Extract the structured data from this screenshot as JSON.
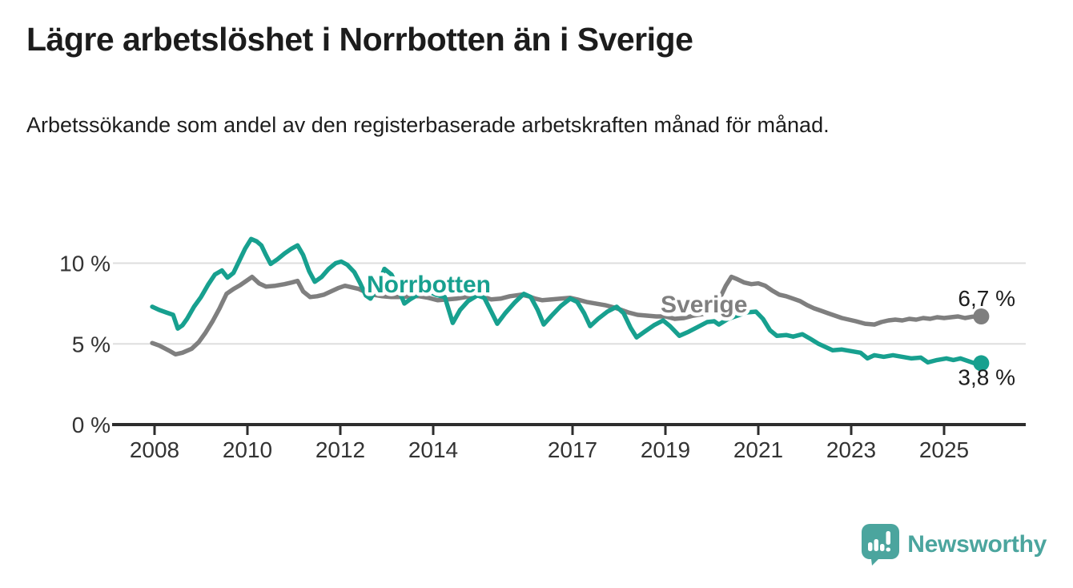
{
  "title": "Lägre arbetslöshet i Norrbotten än i Sverige",
  "subtitle": "Arbetssökande som andel av den registerbaserade arbetskraften månad för månad.",
  "branding": {
    "logo_text": "Newsworthy"
  },
  "colors": {
    "norrbotten": "#17a08f",
    "sverige": "#7f7f7f",
    "grid": "#dedede",
    "axis": "#2d2d2d",
    "tick_text": "#333333",
    "value_text": "#1d1d1d",
    "logo": "#4ba59e",
    "background": "#ffffff"
  },
  "chart_data": {
    "type": "line",
    "title": "Lägre arbetslöshet i Norrbotten än i Sverige",
    "subtitle": "Arbetssökande som andel av den registerbaserade arbetskraften månad för månad.",
    "xlabel": "",
    "ylabel": "",
    "xlim": [
      2007.8,
      2026.3
    ],
    "ylim": [
      0,
      12
    ],
    "grid": "horizontal",
    "legend_position": "inline-labels",
    "y_ticks": [
      {
        "value": 0,
        "label": "0 %"
      },
      {
        "value": 5,
        "label": "5 %"
      },
      {
        "value": 10,
        "label": "10 %"
      }
    ],
    "x_ticks": [
      {
        "value": 2008,
        "label": "2008"
      },
      {
        "value": 2010,
        "label": "2010"
      },
      {
        "value": 2012,
        "label": "2012"
      },
      {
        "value": 2014,
        "label": "2014"
      },
      {
        "value": 2017,
        "label": "2017"
      },
      {
        "value": 2019,
        "label": "2019"
      },
      {
        "value": 2021,
        "label": "2021"
      },
      {
        "value": 2023,
        "label": "2023"
      },
      {
        "value": 2025,
        "label": "2025"
      }
    ],
    "series": [
      {
        "name": "Sverige",
        "color": "#7f7f7f",
        "end_label": "6,7 %",
        "end_value": 6.7,
        "points": [
          [
            2007.95,
            5.05
          ],
          [
            2008.1,
            4.9
          ],
          [
            2008.3,
            4.6
          ],
          [
            2008.45,
            4.35
          ],
          [
            2008.6,
            4.45
          ],
          [
            2008.8,
            4.7
          ],
          [
            2008.95,
            5.1
          ],
          [
            2009.1,
            5.7
          ],
          [
            2009.25,
            6.4
          ],
          [
            2009.4,
            7.2
          ],
          [
            2009.55,
            8.1
          ],
          [
            2009.7,
            8.4
          ],
          [
            2009.85,
            8.65
          ],
          [
            2010.0,
            8.95
          ],
          [
            2010.1,
            9.15
          ],
          [
            2010.25,
            8.75
          ],
          [
            2010.4,
            8.55
          ],
          [
            2010.6,
            8.6
          ],
          [
            2010.8,
            8.7
          ],
          [
            2010.95,
            8.8
          ],
          [
            2011.08,
            8.9
          ],
          [
            2011.2,
            8.25
          ],
          [
            2011.35,
            7.9
          ],
          [
            2011.5,
            7.95
          ],
          [
            2011.65,
            8.05
          ],
          [
            2011.8,
            8.25
          ],
          [
            2011.95,
            8.45
          ],
          [
            2012.1,
            8.6
          ],
          [
            2012.25,
            8.5
          ],
          [
            2012.4,
            8.4
          ],
          [
            2012.55,
            8.2
          ],
          [
            2012.7,
            8.05
          ],
          [
            2012.9,
            7.95
          ],
          [
            2013.1,
            7.9
          ],
          [
            2013.3,
            7.9
          ],
          [
            2013.5,
            7.95
          ],
          [
            2013.7,
            7.95
          ],
          [
            2013.9,
            7.85
          ],
          [
            2014.1,
            7.7
          ],
          [
            2014.3,
            7.75
          ],
          [
            2014.5,
            7.8
          ],
          [
            2014.7,
            7.9
          ],
          [
            2014.95,
            8.0
          ],
          [
            2015.1,
            7.9
          ],
          [
            2015.25,
            7.75
          ],
          [
            2015.45,
            7.8
          ],
          [
            2015.65,
            7.95
          ],
          [
            2015.9,
            8.05
          ],
          [
            2016.05,
            7.95
          ],
          [
            2016.2,
            7.8
          ],
          [
            2016.35,
            7.7
          ],
          [
            2016.55,
            7.75
          ],
          [
            2016.75,
            7.8
          ],
          [
            2016.95,
            7.85
          ],
          [
            2017.1,
            7.75
          ],
          [
            2017.3,
            7.6
          ],
          [
            2017.5,
            7.5
          ],
          [
            2017.7,
            7.4
          ],
          [
            2017.9,
            7.25
          ],
          [
            2018.05,
            7.1
          ],
          [
            2018.2,
            6.95
          ],
          [
            2018.4,
            6.8
          ],
          [
            2018.6,
            6.75
          ],
          [
            2018.8,
            6.7
          ],
          [
            2019.0,
            6.7
          ],
          [
            2019.2,
            6.55
          ],
          [
            2019.4,
            6.6
          ],
          [
            2019.6,
            6.75
          ],
          [
            2019.8,
            6.85
          ],
          [
            2020.0,
            7.1
          ],
          [
            2020.15,
            7.7
          ],
          [
            2020.3,
            8.6
          ],
          [
            2020.42,
            9.15
          ],
          [
            2020.55,
            9.0
          ],
          [
            2020.7,
            8.8
          ],
          [
            2020.85,
            8.7
          ],
          [
            2021.0,
            8.75
          ],
          [
            2021.15,
            8.6
          ],
          [
            2021.3,
            8.3
          ],
          [
            2021.45,
            8.05
          ],
          [
            2021.6,
            7.95
          ],
          [
            2021.75,
            7.8
          ],
          [
            2021.9,
            7.65
          ],
          [
            2022.05,
            7.4
          ],
          [
            2022.2,
            7.2
          ],
          [
            2022.35,
            7.05
          ],
          [
            2022.5,
            6.9
          ],
          [
            2022.65,
            6.75
          ],
          [
            2022.8,
            6.6
          ],
          [
            2022.95,
            6.5
          ],
          [
            2023.1,
            6.4
          ],
          [
            2023.3,
            6.25
          ],
          [
            2023.5,
            6.2
          ],
          [
            2023.65,
            6.35
          ],
          [
            2023.8,
            6.45
          ],
          [
            2023.95,
            6.5
          ],
          [
            2024.1,
            6.45
          ],
          [
            2024.25,
            6.55
          ],
          [
            2024.4,
            6.5
          ],
          [
            2024.55,
            6.6
          ],
          [
            2024.7,
            6.55
          ],
          [
            2024.85,
            6.65
          ],
          [
            2025.0,
            6.6
          ],
          [
            2025.15,
            6.65
          ],
          [
            2025.3,
            6.7
          ],
          [
            2025.45,
            6.6
          ],
          [
            2025.6,
            6.68
          ],
          [
            2025.8,
            6.7
          ]
        ]
      },
      {
        "name": "Norrbotten",
        "color": "#17a08f",
        "end_label": "3,8 %",
        "end_value": 3.8,
        "points": [
          [
            2007.95,
            7.3
          ],
          [
            2008.1,
            7.1
          ],
          [
            2008.25,
            6.95
          ],
          [
            2008.4,
            6.8
          ],
          [
            2008.5,
            5.95
          ],
          [
            2008.6,
            6.15
          ],
          [
            2008.7,
            6.55
          ],
          [
            2008.85,
            7.3
          ],
          [
            2009.0,
            7.9
          ],
          [
            2009.15,
            8.65
          ],
          [
            2009.3,
            9.3
          ],
          [
            2009.45,
            9.55
          ],
          [
            2009.57,
            9.1
          ],
          [
            2009.7,
            9.4
          ],
          [
            2009.85,
            10.3
          ],
          [
            2009.95,
            10.9
          ],
          [
            2010.08,
            11.5
          ],
          [
            2010.2,
            11.35
          ],
          [
            2010.3,
            11.1
          ],
          [
            2010.4,
            10.5
          ],
          [
            2010.5,
            9.95
          ],
          [
            2010.65,
            10.25
          ],
          [
            2010.8,
            10.6
          ],
          [
            2010.95,
            10.9
          ],
          [
            2011.08,
            11.1
          ],
          [
            2011.2,
            10.5
          ],
          [
            2011.33,
            9.5
          ],
          [
            2011.45,
            8.85
          ],
          [
            2011.6,
            9.15
          ],
          [
            2011.75,
            9.65
          ],
          [
            2011.9,
            10.0
          ],
          [
            2012.02,
            10.1
          ],
          [
            2012.15,
            9.9
          ],
          [
            2012.3,
            9.45
          ],
          [
            2012.42,
            8.8
          ],
          [
            2012.55,
            8.0
          ],
          [
            2012.65,
            7.8
          ],
          [
            2012.8,
            8.5
          ],
          [
            2012.95,
            9.65
          ],
          [
            2013.1,
            9.3
          ],
          [
            2013.25,
            8.4
          ],
          [
            2013.38,
            7.5
          ],
          [
            2013.5,
            7.75
          ],
          [
            2013.7,
            8.1
          ],
          [
            2013.9,
            8.25
          ],
          [
            2014.05,
            8.05
          ],
          [
            2014.25,
            7.9
          ],
          [
            2014.42,
            6.3
          ],
          [
            2014.58,
            7.1
          ],
          [
            2014.75,
            7.65
          ],
          [
            2014.95,
            8.0
          ],
          [
            2015.1,
            7.85
          ],
          [
            2015.25,
            7.0
          ],
          [
            2015.38,
            6.25
          ],
          [
            2015.55,
            6.9
          ],
          [
            2015.75,
            7.55
          ],
          [
            2015.95,
            8.1
          ],
          [
            2016.1,
            7.9
          ],
          [
            2016.25,
            7.1
          ],
          [
            2016.38,
            6.2
          ],
          [
            2016.55,
            6.75
          ],
          [
            2016.75,
            7.35
          ],
          [
            2016.95,
            7.8
          ],
          [
            2017.1,
            7.6
          ],
          [
            2017.25,
            6.9
          ],
          [
            2017.38,
            6.1
          ],
          [
            2017.55,
            6.55
          ],
          [
            2017.75,
            7.0
          ],
          [
            2017.95,
            7.3
          ],
          [
            2018.1,
            6.9
          ],
          [
            2018.25,
            6.0
          ],
          [
            2018.38,
            5.4
          ],
          [
            2018.55,
            5.75
          ],
          [
            2018.75,
            6.15
          ],
          [
            2018.95,
            6.45
          ],
          [
            2019.1,
            6.1
          ],
          [
            2019.3,
            5.5
          ],
          [
            2019.5,
            5.75
          ],
          [
            2019.7,
            6.05
          ],
          [
            2019.9,
            6.35
          ],
          [
            2020.05,
            6.4
          ],
          [
            2020.15,
            6.2
          ],
          [
            2020.35,
            6.55
          ],
          [
            2020.55,
            6.75
          ],
          [
            2020.75,
            6.95
          ],
          [
            2020.95,
            7.0
          ],
          [
            2021.1,
            6.55
          ],
          [
            2021.25,
            5.85
          ],
          [
            2021.4,
            5.5
          ],
          [
            2021.6,
            5.55
          ],
          [
            2021.75,
            5.45
          ],
          [
            2021.95,
            5.6
          ],
          [
            2022.1,
            5.35
          ],
          [
            2022.3,
            5.0
          ],
          [
            2022.45,
            4.8
          ],
          [
            2022.6,
            4.6
          ],
          [
            2022.8,
            4.65
          ],
          [
            2023.0,
            4.55
          ],
          [
            2023.2,
            4.45
          ],
          [
            2023.35,
            4.1
          ],
          [
            2023.5,
            4.3
          ],
          [
            2023.7,
            4.2
          ],
          [
            2023.9,
            4.3
          ],
          [
            2024.1,
            4.2
          ],
          [
            2024.3,
            4.1
          ],
          [
            2024.5,
            4.15
          ],
          [
            2024.65,
            3.85
          ],
          [
            2024.85,
            4.0
          ],
          [
            2025.05,
            4.1
          ],
          [
            2025.2,
            4.0
          ],
          [
            2025.35,
            4.1
          ],
          [
            2025.5,
            3.95
          ],
          [
            2025.65,
            3.8
          ],
          [
            2025.8,
            3.85
          ]
        ]
      }
    ]
  }
}
